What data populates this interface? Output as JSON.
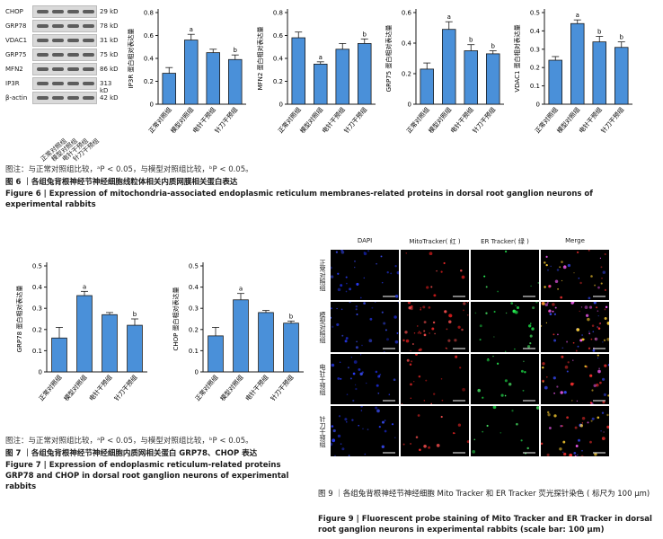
{
  "fig6": {
    "blot": {
      "left_labels": [
        "CHOP",
        "GRP78",
        "VDAC1",
        "GRP75",
        "MFN2",
        "IP3R",
        "β-actin"
      ],
      "right_labels": [
        "29 kD",
        "78 kD",
        "31 kD",
        "75 kD",
        "86 kD",
        "313 kD",
        "42 kD"
      ],
      "groups": [
        "正常对照组",
        "模型对照组",
        "电针干预组",
        "针刀干预组"
      ]
    },
    "note": "图注：与正常对照组比较，ᵃP < 0.05，与模型对照组比较，ᵇP < 0.05。",
    "caption_cn": "图 6 ｜各组兔背根神经节神经细胞线粒体相关内质网膜相关蛋白表达",
    "caption_en": "Figure 6  |  Expression of mitochondria-associated endoplasmic reticulum membranes-related proteins in dorsal root ganglion neurons of experimental rabbits"
  },
  "fig7": {
    "note": "图注：与正常对照组比较，ᵃP < 0.05，与模型对照组比较，ᵇP < 0.05。",
    "caption_cn": "图 7 ｜各组兔背根神经节神经细胞内质网相关蛋白 GRP78、CHOP 表达",
    "caption_en": "Figure 7  |  Expression of endoplasmic reticulum-related proteins GRP78 and CHOP in dorsal root ganglion neurons of experimental rabbits"
  },
  "fig9": {
    "columns": [
      "DAPI",
      "MitoTracker( 红 )",
      "ER Tracker( 绿 )",
      "Merge"
    ],
    "rows": [
      "正常对照组",
      "模型对照组",
      "电针干预组",
      "针刀干预组"
    ],
    "caption_cn": "图 9 ｜各组兔背根神经节神经细胞 Mito Tracker 和 ER Tracker 荧光探针染色 ( 标尺为 100 μm)",
    "caption_en": "Figure 9  |  Fluorescent probe staining of Mito Tracker and ER Tracker in dorsal root ganglion neurons in experimental rabbits (scale bar: 100 μm)"
  },
  "colors": {
    "bar": "#4a90d9",
    "bar_edge": "#1a1a1a",
    "background": "#ffffff"
  },
  "chart_data": [
    {
      "type": "bar",
      "ylabel": "IP3R 蛋白相对表达量",
      "ylim": [
        0,
        0.8
      ],
      "yticks": [
        0,
        0.2,
        0.4,
        0.6,
        0.8
      ],
      "categories": [
        "正常对照组",
        "模型对照组",
        "电针干预组",
        "针刀干预组"
      ],
      "values": [
        0.27,
        0.56,
        0.45,
        0.39
      ],
      "errors": [
        0.05,
        0.05,
        0.03,
        0.04
      ],
      "sig": [
        "",
        "a",
        "",
        "b"
      ]
    },
    {
      "type": "bar",
      "ylabel": "MFN2 蛋白相对表达量",
      "ylim": [
        0,
        0.8
      ],
      "yticks": [
        0,
        0.2,
        0.4,
        0.6,
        0.8
      ],
      "categories": [
        "正常对照组",
        "模型对照组",
        "电针干预组",
        "针刀干预组"
      ],
      "values": [
        0.58,
        0.35,
        0.48,
        0.53
      ],
      "errors": [
        0.05,
        0.02,
        0.05,
        0.04
      ],
      "sig": [
        "",
        "a",
        "",
        "b"
      ]
    },
    {
      "type": "bar",
      "ylabel": "GRP75 蛋白相对表达量",
      "ylim": [
        0,
        0.6
      ],
      "yticks": [
        0,
        0.2,
        0.4,
        0.6
      ],
      "categories": [
        "正常对照组",
        "模型对照组",
        "电针干预组",
        "针刀干预组"
      ],
      "values": [
        0.23,
        0.49,
        0.35,
        0.33
      ],
      "errors": [
        0.04,
        0.05,
        0.04,
        0.02
      ],
      "sig": [
        "",
        "a",
        "b",
        "b"
      ]
    },
    {
      "type": "bar",
      "ylabel": "VDAC1 蛋白相对表达量",
      "ylim": [
        0,
        0.5
      ],
      "yticks": [
        0,
        0.1,
        0.2,
        0.3,
        0.4,
        0.5
      ],
      "categories": [
        "正常对照组",
        "模型对照组",
        "电针干预组",
        "针刀干预组"
      ],
      "values": [
        0.24,
        0.44,
        0.34,
        0.31
      ],
      "errors": [
        0.02,
        0.02,
        0.03,
        0.03
      ],
      "sig": [
        "",
        "a",
        "b",
        "b"
      ]
    },
    {
      "type": "bar",
      "ylabel": "GRP78 蛋白相对表达量",
      "ylim": [
        0,
        0.5
      ],
      "yticks": [
        0,
        0.1,
        0.2,
        0.3,
        0.4,
        0.5
      ],
      "categories": [
        "正常对照组",
        "模型对照组",
        "电针干预组",
        "针刀干预组"
      ],
      "values": [
        0.16,
        0.36,
        0.27,
        0.22
      ],
      "errors": [
        0.05,
        0.02,
        0.01,
        0.03
      ],
      "sig": [
        "",
        "a",
        "",
        "b"
      ]
    },
    {
      "type": "bar",
      "ylabel": "CHOP 蛋白相对表达量",
      "ylim": [
        0,
        0.5
      ],
      "yticks": [
        0,
        0.1,
        0.2,
        0.3,
        0.4,
        0.5
      ],
      "categories": [
        "正常对照组",
        "模型对照组",
        "电针干预组",
        "针刀干预组"
      ],
      "values": [
        0.17,
        0.34,
        0.28,
        0.23
      ],
      "errors": [
        0.04,
        0.03,
        0.01,
        0.01
      ],
      "sig": [
        "",
        "a",
        "",
        "b"
      ]
    }
  ]
}
